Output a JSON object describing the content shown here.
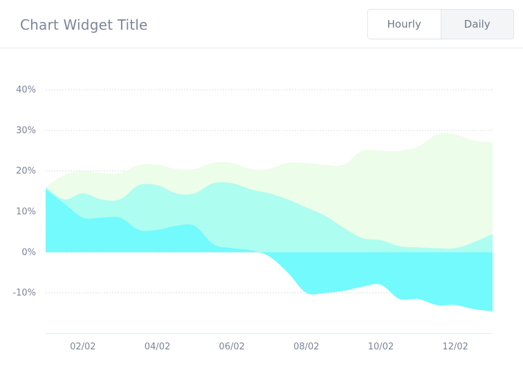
{
  "header": {
    "title": "Chart Widget Title",
    "toggle": {
      "hourly_label": "Hourly",
      "daily_label": "Daily",
      "selected": "Daily"
    }
  },
  "chart_data": {
    "type": "area",
    "title": "Chart Widget Title",
    "x": [
      1,
      1.5,
      2,
      2.5,
      3,
      3.5,
      4,
      4.5,
      5,
      5.5,
      6,
      6.5,
      7,
      7.5,
      8,
      8.5,
      9,
      9.5,
      10,
      10.5,
      11,
      11.5,
      12,
      12.5,
      13
    ],
    "xticks": [
      2,
      4,
      6,
      8,
      10,
      12
    ],
    "xticklabels": [
      "02/02",
      "04/02",
      "06/02",
      "08/02",
      "10/02",
      "12/02"
    ],
    "xlim": [
      1,
      13
    ],
    "ylim": [
      -20,
      40
    ],
    "yticks": [
      -10,
      0,
      10,
      20,
      30,
      40
    ],
    "yticklabels": [
      "-10%",
      "0%",
      "10%",
      "20%",
      "30%",
      "40%"
    ],
    "grid": true,
    "series": [
      {
        "color": "#ecfde9",
        "values": [
          16,
          19,
          20,
          19.5,
          19.5,
          21.5,
          21.5,
          20.5,
          20.5,
          22,
          22,
          20.5,
          20.5,
          22,
          22,
          21.5,
          21.5,
          25,
          25,
          25,
          26,
          29,
          29,
          27.5,
          27
        ]
      },
      {
        "color": "#adfdf0",
        "values": [
          16,
          13,
          14.5,
          13,
          13,
          16.5,
          16.5,
          14.5,
          14.5,
          17,
          17,
          15.5,
          14.5,
          13,
          11,
          9,
          6,
          3.5,
          3,
          1.5,
          1.2,
          1,
          1,
          2.5,
          4.5
        ]
      },
      {
        "color": "#72fafd",
        "values": [
          15.5,
          12,
          8.5,
          8.5,
          8.5,
          5.5,
          5.5,
          6.5,
          6.5,
          2,
          1,
          0.5,
          -1,
          -5,
          -10,
          -10,
          -9.5,
          -8.5,
          -8,
          -11.5,
          -11.5,
          -13,
          -13,
          -14,
          -14.5
        ]
      }
    ]
  }
}
